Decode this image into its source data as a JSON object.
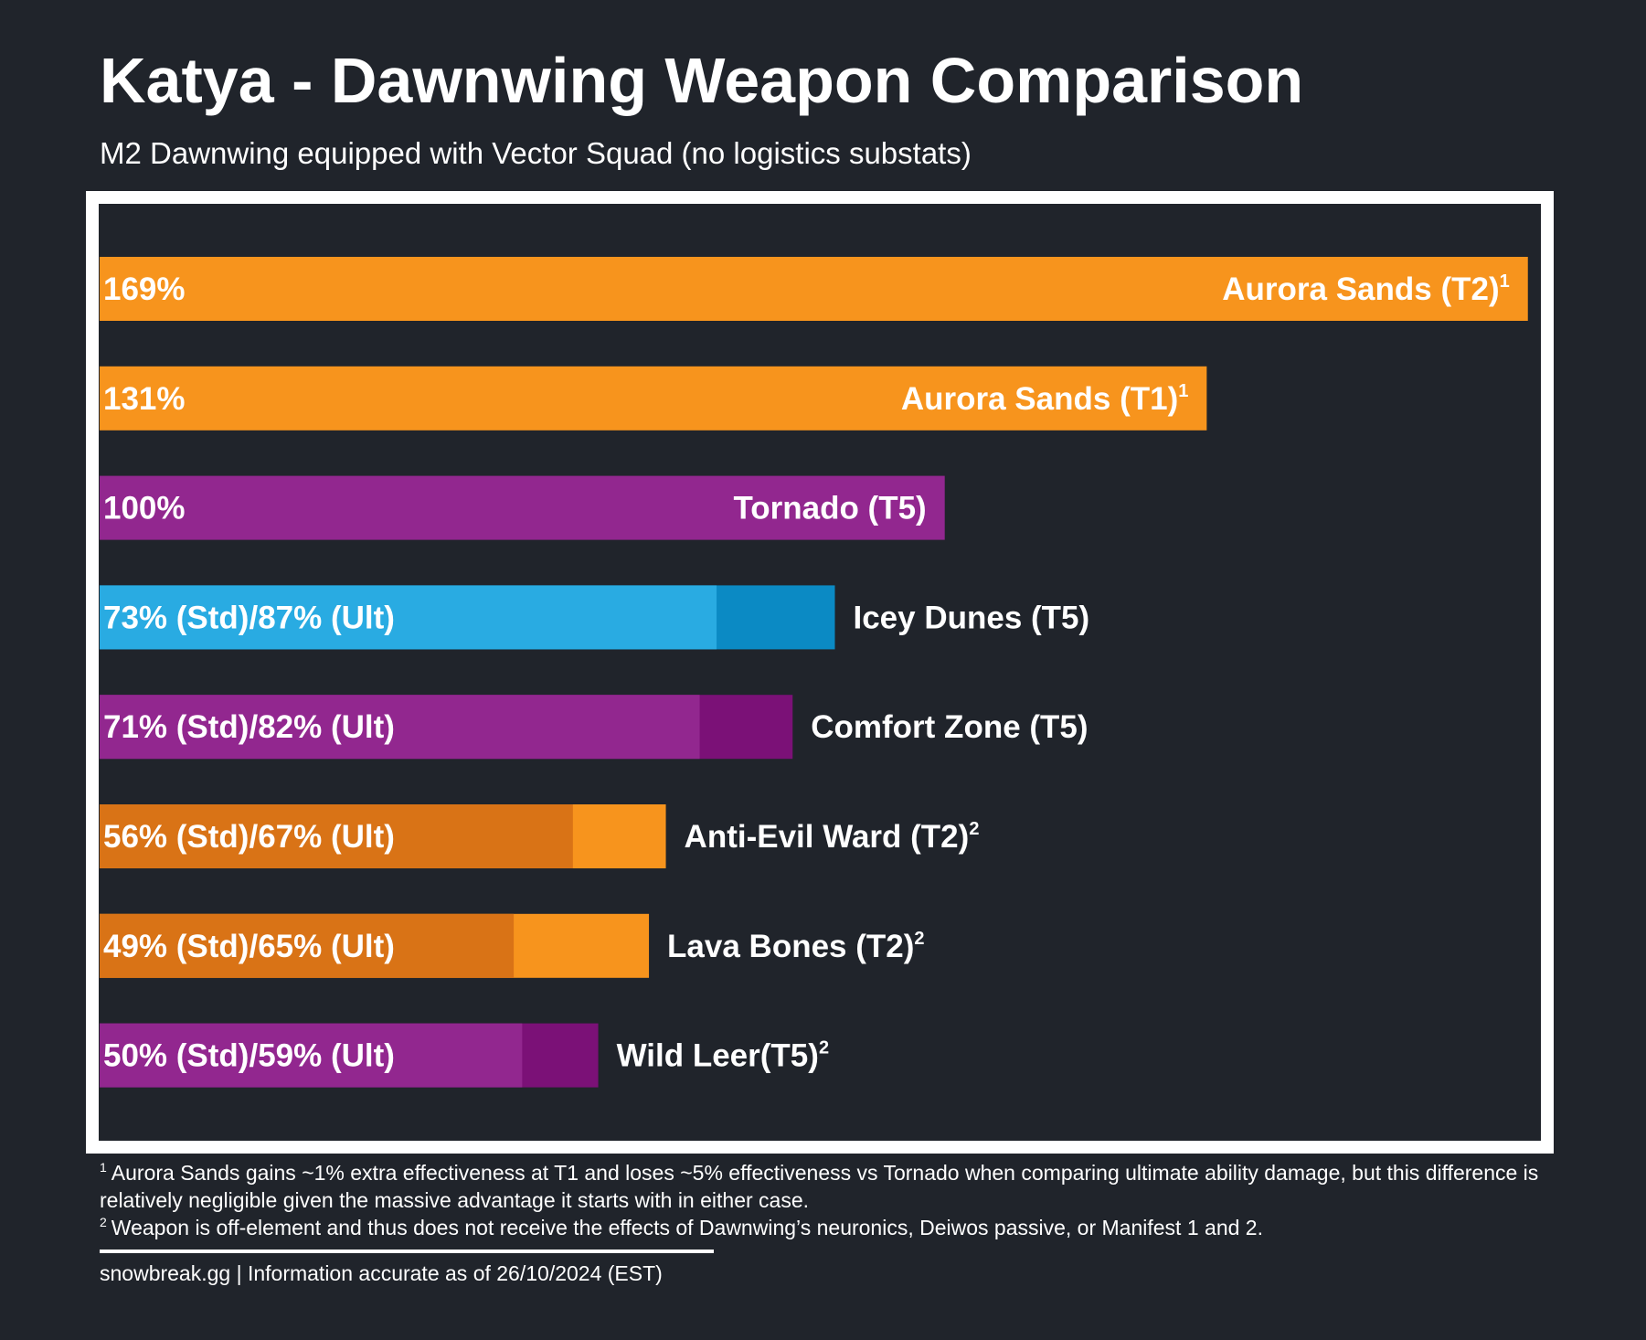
{
  "chart_data": {
    "type": "bar",
    "orientation": "horizontal",
    "title": "Katya - Dawnwing Weapon Comparison",
    "subtitle": "M2 Dawnwing equipped with Vector Squad (no logistics substats)",
    "categories": [
      "Aurora Sands (T2)",
      "Aurora Sands (T1)",
      "Tornado (T5)",
      "Icey Dunes (T5)",
      "Comfort Zone (T5)",
      "Anti-Evil Ward (T2)",
      "Lava Bones (T2)",
      "Wild Leer(T5)"
    ],
    "footnote_marks": [
      "1",
      "1",
      null,
      null,
      null,
      "2",
      "2",
      "2"
    ],
    "series": [
      {
        "values": [
          169,
          131,
          100,
          73,
          71,
          56,
          49,
          50
        ],
        "value_labels": [
          "169%",
          "131%",
          "100%",
          "73% (Std)/87% (Ult)",
          "71% (Std)/82% (Ult)",
          "56% (Std)/67% (Ult)",
          "49% (Std)/65% (Ult)",
          "50% (Std)/59% (Ult)"
        ],
        "colors": [
          "#f7941d",
          "#f7941d",
          "#92278f",
          "#29abe2",
          "#92278f",
          "#d97316",
          "#d97316",
          "#92278f"
        ]
      },
      {
        "values": [
          null,
          null,
          null,
          87,
          82,
          67,
          65,
          59
        ],
        "colors": [
          null,
          null,
          null,
          "#0b8ac4",
          "#7b1177",
          "#f7941d",
          "#f7941d",
          "#7b1177"
        ]
      }
    ],
    "xlim": [
      0,
      170
    ],
    "notes": [
      {
        "mark": "1",
        "text": "Aurora Sands gains ~1% extra effectiveness at T1 and loses ~5% effectiveness vs Tornado when comparing ultimate ability damage, but this difference is relatively negligible given the massive advantage it starts with in either case."
      },
      {
        "mark": "2",
        "text": "Weapon is off-element and thus does not receive the effects of Dawnwing’s neuronics, Deiwos passive, or Manifest 1 and 2."
      }
    ],
    "source": "snowbreak.gg | Information accurate as of 26/10/2024 (EST)"
  }
}
